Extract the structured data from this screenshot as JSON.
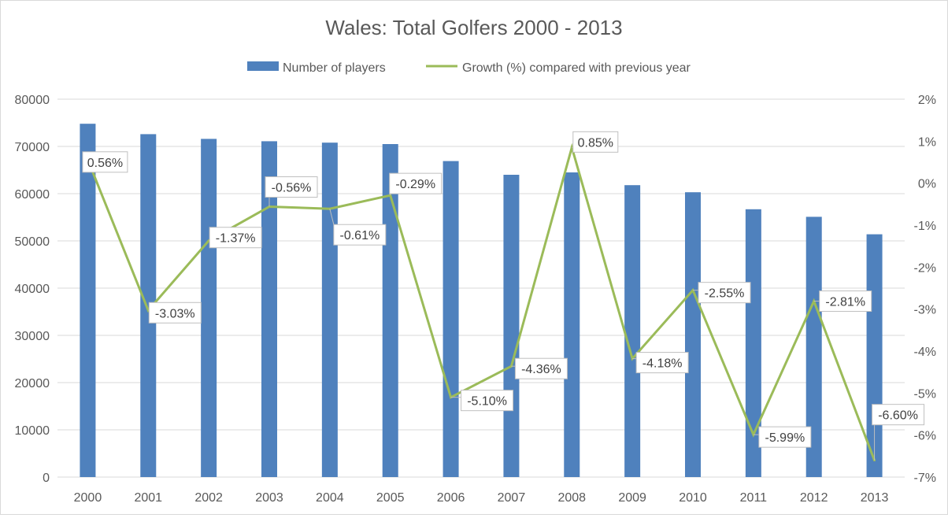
{
  "chart_data": {
    "type": "bar+line",
    "title": "Wales: Total Golfers 2000 - 2013",
    "categories": [
      "2000",
      "2001",
      "2002",
      "2003",
      "2004",
      "2005",
      "2006",
      "2007",
      "2008",
      "2009",
      "2010",
      "2011",
      "2012",
      "2013"
    ],
    "series": [
      {
        "name": "Number of players",
        "type": "bar",
        "axis": "left",
        "color": "#4f81bd",
        "values": [
          74800,
          72600,
          71600,
          71100,
          70800,
          70500,
          66900,
          64000,
          64500,
          61800,
          60300,
          56700,
          55100,
          51400
        ]
      },
      {
        "name": "Growth (%) compared with previous year",
        "type": "line",
        "axis": "right",
        "color": "#9bbb59",
        "values": [
          0.56,
          -3.03,
          -1.37,
          -0.56,
          -0.61,
          -0.29,
          -5.1,
          -4.36,
          0.85,
          -4.18,
          -2.55,
          -5.99,
          -2.81,
          -6.6
        ],
        "labels": [
          "0.56%",
          "-3.03%",
          "-1.37%",
          "-0.56%",
          "-0.61%",
          "-0.29%",
          "-5.10%",
          "-4.36%",
          "0.85%",
          "-4.18%",
          "-2.55%",
          "-5.99%",
          "-2.81%",
          "-6.60%"
        ]
      }
    ],
    "y_left": {
      "min": 0,
      "max": 80000,
      "ticks": [
        "0",
        "10000",
        "20000",
        "30000",
        "40000",
        "50000",
        "60000",
        "70000",
        "80000"
      ]
    },
    "y_right": {
      "min": -7,
      "max": 2,
      "ticks": [
        "-7%",
        "-6%",
        "-5%",
        "-4%",
        "-3%",
        "-2%",
        "-1%",
        "0%",
        "1%",
        "2%"
      ]
    },
    "grid": true,
    "legend_position": "top"
  }
}
